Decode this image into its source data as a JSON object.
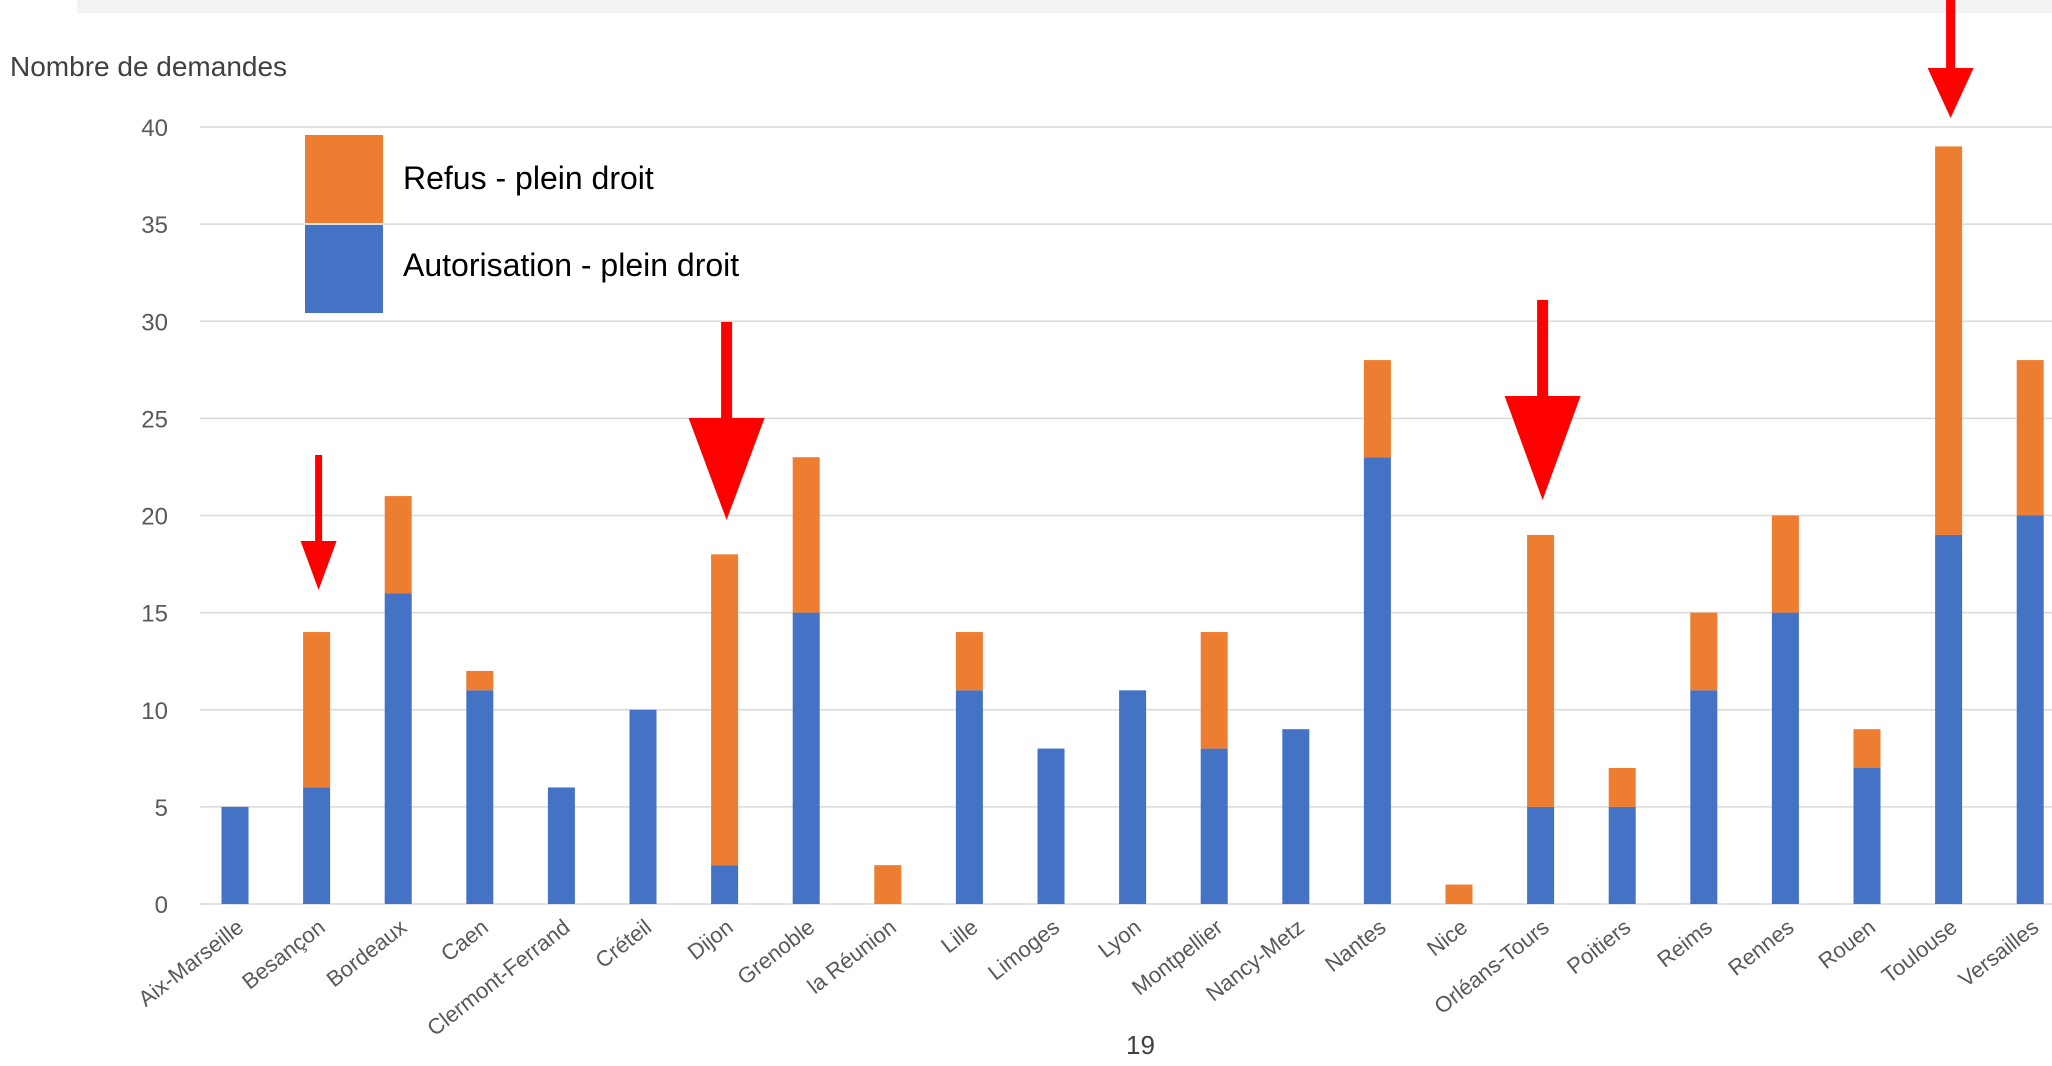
{
  "page_number": "19",
  "colors": {
    "autorisation": "#4472C4",
    "refus": "#ED7D31",
    "grid": "#d9d9d9",
    "arrow": "#ff0000",
    "tick_text": "#595959"
  },
  "chart_data": {
    "type": "bar",
    "stacked": true,
    "ylabel": "Nombre de demandes",
    "ylim": [
      0,
      40
    ],
    "yticks": [
      0,
      5,
      10,
      15,
      20,
      25,
      30,
      35,
      40
    ],
    "grid": true,
    "legend_position": "top-left",
    "categories": [
      "Aix-Marseille",
      "Besançon",
      "Bordeaux",
      "Caen",
      "Clermont-Ferrand",
      "Créteil",
      "Dijon",
      "Grenoble",
      "la Réunion",
      "Lille",
      "Limoges",
      "Lyon",
      "Montpellier",
      "Nancy-Metz",
      "Nantes",
      "Nice",
      "Orléans-Tours",
      "Poitiers",
      "Reims",
      "Rennes",
      "Rouen",
      "Toulouse",
      "Versailles"
    ],
    "series": [
      {
        "name": "Autorisation - plein droit",
        "values": [
          5,
          6,
          16,
          11,
          6,
          10,
          2,
          15,
          0,
          11,
          8,
          11,
          8,
          9,
          23,
          0,
          5,
          5,
          11,
          15,
          7,
          19,
          20
        ]
      },
      {
        "name": "Refus - plein droit",
        "values": [
          0,
          8,
          5,
          1,
          0,
          0,
          16,
          8,
          2,
          3,
          0,
          0,
          6,
          0,
          5,
          1,
          14,
          2,
          4,
          5,
          2,
          20,
          8
        ]
      }
    ],
    "highlighted_categories": [
      "Besançon",
      "Dijon",
      "Orléans-Tours",
      "Toulouse"
    ]
  }
}
